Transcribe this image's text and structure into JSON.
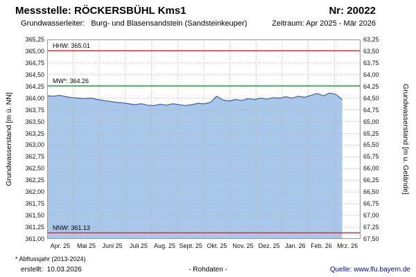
{
  "header": {
    "station": "Messstelle: RÖCKERSBÜHL Kms1",
    "number": "Nr: 20022",
    "aquifer_label": "Grundwasserleiter:",
    "aquifer_value": "Burg- und Blasensandstein (Sandsteinkeuper)",
    "period": "Zeitraum: Apr 2025 - Mär 2026"
  },
  "footer": {
    "footnote": "* Abflussjahr (2013-2024)",
    "created": "erstellt:  10.03.2026",
    "center": "- Rohdaten -",
    "source_label": "Quelle: ",
    "source_link": "www.lfu.bayern.de"
  },
  "chart_data": {
    "type": "area",
    "title": "Messstelle: RÖCKERSBÜHL Kms1",
    "ylabel_left": "Grundwasserstand [m ü. NN]",
    "ylabel_right": "Grundwasserstand [m u. Gelände]",
    "ylim_left": [
      361.0,
      365.25
    ],
    "ylim_right": [
      67.5,
      63.25
    ],
    "grid": true,
    "left_ticks": [
      "365,25",
      "365,00",
      "364,75",
      "364,50",
      "364,25",
      "364,00",
      "363,75",
      "363,50",
      "363,25",
      "363,00",
      "362,75",
      "362,50",
      "362,25",
      "362,00",
      "361,75",
      "361,50",
      "361,25",
      "361,00"
    ],
    "right_ticks": [
      "63,25",
      "63,50",
      "63,75",
      "64,00",
      "64,25",
      "64,50",
      "64,75",
      "65,00",
      "65,25",
      "65,50",
      "65,75",
      "66,00",
      "66,25",
      "66,50",
      "66,75",
      "67,00",
      "67,25",
      "67,50"
    ],
    "x_tick_labels": [
      "Apr. 25",
      "Mai 25",
      "Juni 25",
      "Juli 25",
      "Aug. 25",
      "Sept. 25",
      "Okt. 25",
      "Nov. 25",
      "Dez. 25",
      "Jan. 26",
      "Feb. 26",
      "Mrz. 26"
    ],
    "reference_lines": [
      {
        "name": "HHW",
        "label": "HHW: 365.01",
        "value": 365.01,
        "color": "#e02020"
      },
      {
        "name": "MW",
        "label": "MW*: 364.26",
        "value": 364.26,
        "color": "#00a020"
      },
      {
        "name": "NNW",
        "label": "NNW: 361.13",
        "value": 361.13,
        "color": "#e02020"
      }
    ],
    "series": [
      {
        "name": "Rohdaten",
        "fill_color": "#a9c7e8",
        "line_color": "#3b66c4",
        "x_start_month": 0,
        "x_end_month": 11.3,
        "values": [
          364.05,
          364.04,
          364.06,
          364.03,
          364.01,
          364.0,
          363.99,
          364.0,
          363.97,
          363.95,
          363.93,
          363.91,
          363.9,
          363.88,
          363.86,
          363.88,
          363.85,
          363.84,
          363.87,
          363.85,
          363.88,
          363.86,
          363.84,
          363.86,
          363.89,
          363.88,
          363.91,
          364.04,
          363.96,
          363.94,
          363.97,
          363.95,
          363.99,
          363.97,
          364.0,
          363.98,
          364.01,
          364.0,
          364.03,
          364.0,
          364.04,
          364.02,
          364.06,
          364.1,
          364.05,
          364.11,
          364.08,
          363.97
        ]
      }
    ]
  }
}
